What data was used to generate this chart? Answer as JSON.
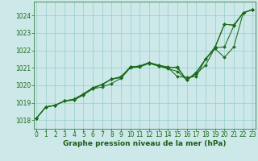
{
  "title": "Graphe pression niveau de la mer (hPa)",
  "xlabel_ticks": [
    0,
    1,
    2,
    3,
    4,
    5,
    6,
    7,
    8,
    9,
    10,
    11,
    12,
    13,
    14,
    15,
    16,
    17,
    18,
    19,
    20,
    21,
    22,
    23
  ],
  "ylim": [
    1017.5,
    1024.8
  ],
  "xlim": [
    -0.3,
    23.3
  ],
  "yticks": [
    1018,
    1019,
    1020,
    1021,
    1022,
    1023,
    1024
  ],
  "background_color": "#cce8e8",
  "grid_color": "#99cccc",
  "line_color": "#1a6b1a",
  "series": [
    [
      1018.1,
      1018.75,
      1018.85,
      1019.1,
      1019.15,
      1019.45,
      1019.8,
      1019.9,
      1020.1,
      1020.4,
      1021.0,
      1021.05,
      1021.25,
      1021.1,
      1021.0,
      1021.05,
      1020.3,
      1020.75,
      1021.5,
      1022.15,
      1023.5,
      1023.45,
      1024.15,
      1024.35
    ],
    [
      1018.1,
      1018.75,
      1018.85,
      1019.1,
      1019.15,
      1019.45,
      1019.8,
      1020.05,
      1020.35,
      1020.45,
      1021.05,
      1021.1,
      1021.3,
      1021.15,
      1021.0,
      1020.5,
      1020.45,
      1020.5,
      1021.5,
      1022.1,
      1021.6,
      1022.2,
      1024.15,
      1024.35
    ],
    [
      1018.1,
      1018.75,
      1018.85,
      1019.1,
      1019.2,
      1019.5,
      1019.85,
      1020.05,
      1020.35,
      1020.45,
      1021.05,
      1021.1,
      1021.3,
      1021.1,
      1020.95,
      1020.8,
      1020.3,
      1020.65,
      1021.15,
      1022.15,
      1022.2,
      1023.4,
      1024.15,
      1024.35
    ],
    [
      1018.1,
      1018.75,
      1018.85,
      1019.1,
      1019.2,
      1019.5,
      1019.85,
      1020.05,
      1020.35,
      1020.5,
      1021.05,
      1021.1,
      1021.3,
      1021.15,
      1021.05,
      1021.0,
      1020.3,
      1020.7,
      1021.5,
      1022.2,
      1023.5,
      1023.45,
      1024.15,
      1024.35
    ]
  ],
  "title_color": "#1a5c1a",
  "title_fontsize": 6.5,
  "tick_fontsize": 5.5,
  "tick_color": "#1a6b1a",
  "linewidth": 0.75,
  "markersize": 2.0
}
